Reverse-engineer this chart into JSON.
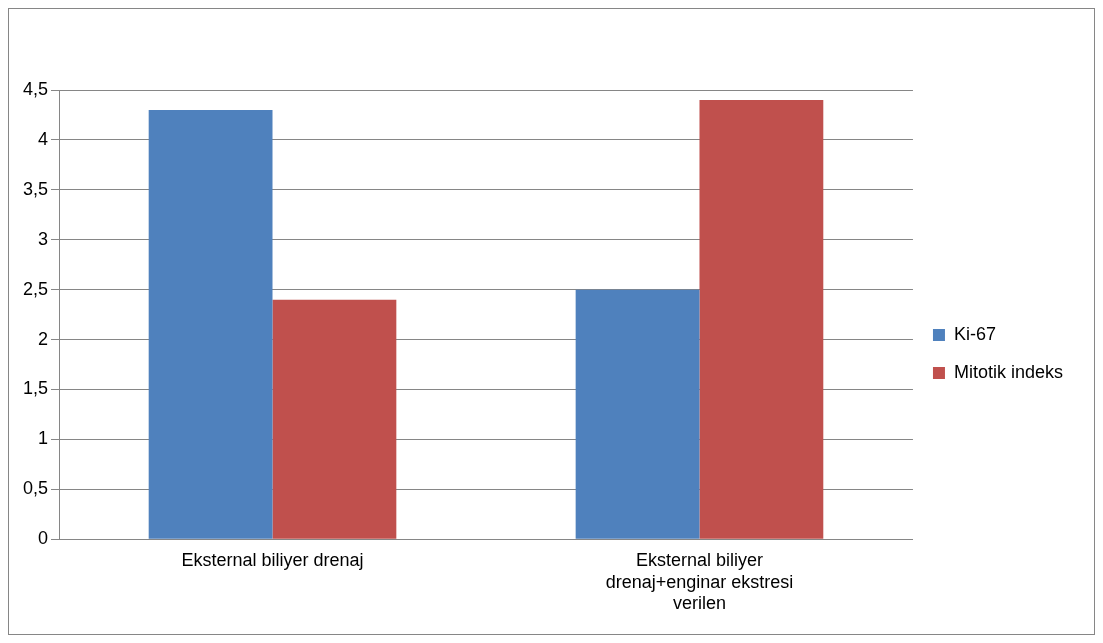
{
  "chart_data": {
    "type": "bar",
    "categories": [
      "Eksternal biliyer drenaj",
      "Eksternal biliyer drenaj+enginar ekstresi verilen"
    ],
    "series": [
      {
        "name": "Ki-67",
        "color": "#4f81bd",
        "values": [
          4.3,
          2.5
        ]
      },
      {
        "name": "Mitotik indeks",
        "color": "#c0504d",
        "values": [
          2.4,
          4.4
        ]
      }
    ],
    "ylim": [
      0,
      4.5
    ],
    "yticks": [
      0,
      {
        "value": 0.5,
        "label": "0,5"
      },
      1,
      {
        "value": 1.5,
        "label": "1,5"
      },
      2,
      {
        "value": 2.5,
        "label": "2,5"
      },
      3,
      {
        "value": 3.5,
        "label": "3,5"
      },
      4,
      {
        "value": 4.5,
        "label": "4,5"
      }
    ],
    "grid": "y",
    "legend": "right"
  }
}
